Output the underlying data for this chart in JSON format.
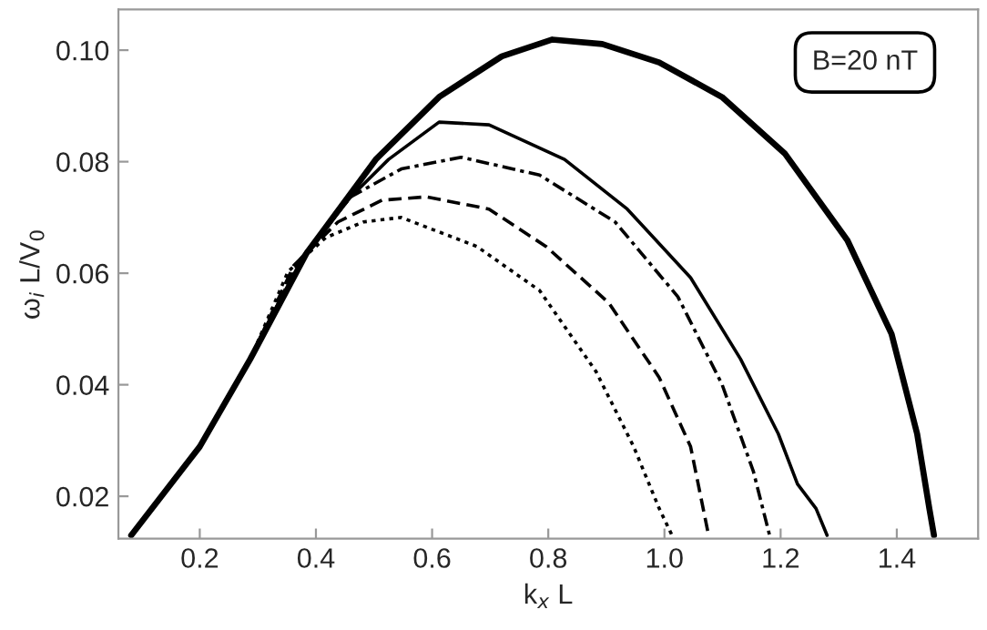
{
  "chart_data": {
    "type": "line",
    "xlabel": "k$_{x}$ L",
    "ylabel": "ω$_{i}$ L/V$_{0}$",
    "annotations": [
      "B=20 nT"
    ],
    "xlim": [
      0.06,
      1.54
    ],
    "ylim": [
      0.0124,
      0.1073
    ],
    "xticks": [
      0.2,
      0.4,
      0.6,
      0.8,
      {
        "value": 1.0,
        "label": "1.0"
      },
      1.2,
      1.4
    ],
    "yticks": [
      0.02,
      0.04,
      0.06,
      0.08,
      {
        "value": 0.1,
        "label": "0.10"
      }
    ],
    "grid": false,
    "legend": false,
    "marker": "none",
    "series": [
      {
        "color": "#000000",
        "line_style": "solid",
        "x": [
          0.082,
          0.2,
          0.287,
          0.384,
          0.503,
          0.612,
          0.72,
          0.807,
          0.893,
          0.991,
          1.099,
          1.207,
          1.315,
          1.391,
          1.435,
          1.456,
          1.464
        ],
        "values": [
          0.013,
          0.0289,
          0.0446,
          0.0636,
          0.0804,
          0.0916,
          0.0989,
          0.1019,
          0.1011,
          0.0978,
          0.0916,
          0.0815,
          0.0659,
          0.0491,
          0.0312,
          0.0178,
          0.013
        ]
      },
      {
        "color": "#000000",
        "line_style": "solid",
        "x": [
          0.082,
          0.2,
          0.287,
          0.384,
          0.46,
          0.525,
          0.612,
          0.698,
          0.828,
          0.936,
          1.045,
          1.131,
          1.196,
          1.229,
          1.261,
          1.28
        ],
        "values": [
          0.013,
          0.0289,
          0.0446,
          0.0636,
          0.0737,
          0.0804,
          0.0871,
          0.0866,
          0.0804,
          0.0715,
          0.0592,
          0.0446,
          0.0312,
          0.0222,
          0.0178,
          0.013
        ]
      },
      {
        "color": "#000000",
        "line_style": "dashdot",
        "x": [
          0.082,
          0.2,
          0.287,
          0.373,
          0.46,
          0.547,
          0.65,
          0.785,
          0.915,
          1.023,
          1.099,
          1.153,
          1.181
        ],
        "values": [
          0.013,
          0.0289,
          0.0446,
          0.0625,
          0.0737,
          0.0787,
          0.0808,
          0.0776,
          0.0692,
          0.0558,
          0.0401,
          0.0245,
          0.013
        ]
      },
      {
        "color": "#000000",
        "line_style": "dashed",
        "x": [
          0.082,
          0.2,
          0.287,
          0.362,
          0.438,
          0.514,
          0.59,
          0.698,
          0.796,
          0.904,
          0.991,
          1.045,
          1.076
        ],
        "values": [
          0.013,
          0.0289,
          0.0446,
          0.0614,
          0.0692,
          0.0731,
          0.0737,
          0.0715,
          0.0648,
          0.0547,
          0.0413,
          0.0289,
          0.013
        ]
      },
      {
        "color": "#000000",
        "line_style": "dotted",
        "x": [
          0.082,
          0.2,
          0.287,
          0.352,
          0.417,
          0.482,
          0.547,
          0.677,
          0.785,
          0.882,
          0.947,
          0.991,
          1.013
        ],
        "values": [
          0.013,
          0.0289,
          0.0446,
          0.0603,
          0.0664,
          0.0692,
          0.07,
          0.0648,
          0.0569,
          0.0424,
          0.0289,
          0.0178,
          0.013
        ]
      }
    ]
  }
}
